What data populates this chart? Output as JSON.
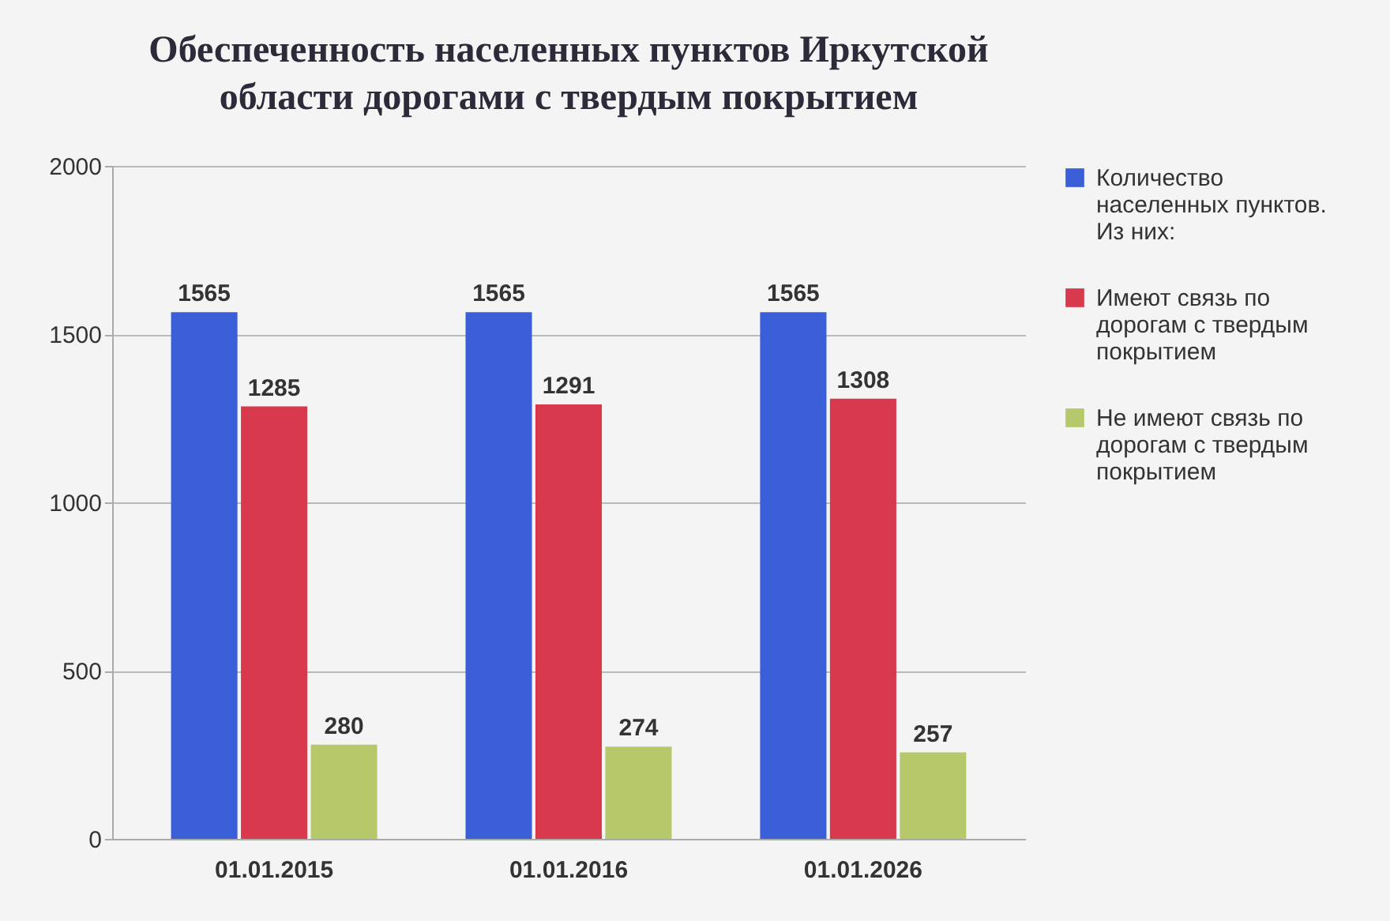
{
  "chart_data": {
    "type": "bar",
    "title": "Обеспеченность населенных пунктов Иркутской области дорогами с твердым покрытием",
    "categories": [
      "01.01.2015",
      "01.01.2016",
      "01.01.2026"
    ],
    "series": [
      {
        "name": "Количество населенных пунктов. Из них:",
        "color": "#3b5fd8",
        "values": [
          1565,
          1565,
          1565
        ]
      },
      {
        "name": "Имеют связь по дорогам с твердым покрытием",
        "color": "#d9394d",
        "values": [
          1285,
          1291,
          1308
        ]
      },
      {
        "name": "Не имеют связь по дорогам с твердым покрытием",
        "color": "#b5c96a",
        "values": [
          280,
          274,
          257
        ]
      }
    ],
    "ylim": [
      0,
      2000
    ],
    "yticks": [
      0,
      500,
      1000,
      1500,
      2000
    ],
    "grid": "y",
    "legend": "right",
    "data_labels": true
  }
}
